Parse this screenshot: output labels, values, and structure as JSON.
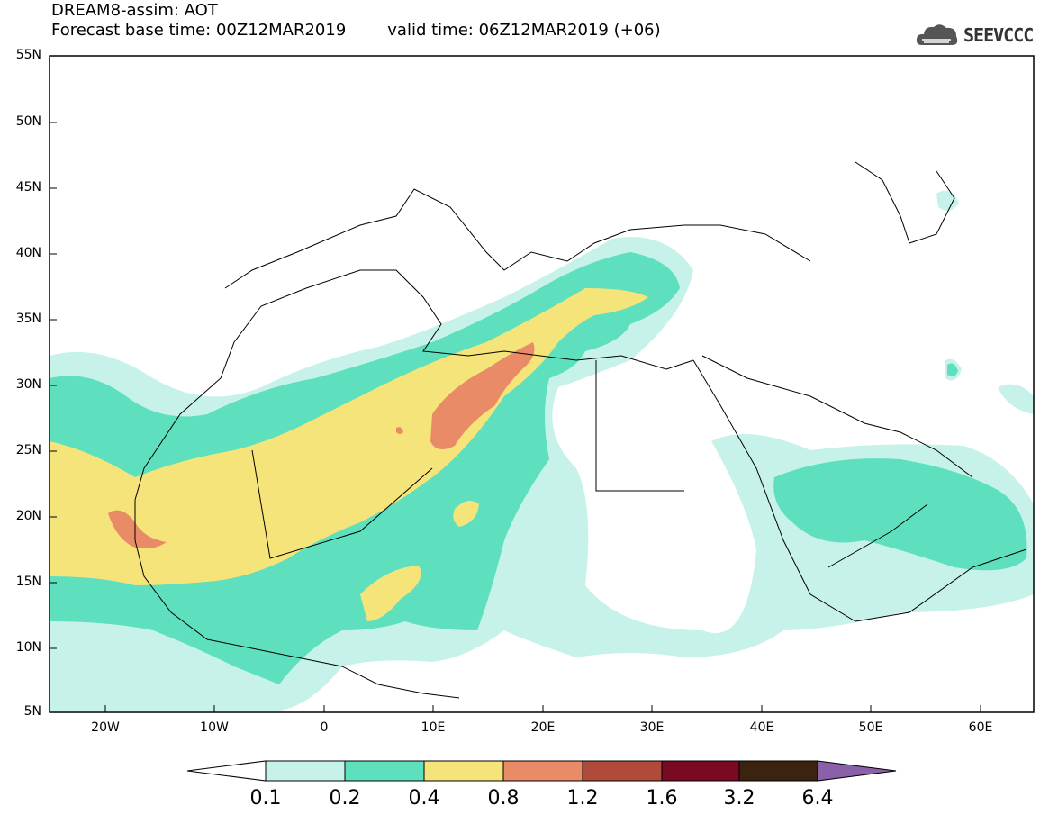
{
  "title": {
    "line1": "DREAM8-assim: AOT",
    "base_time": "Forecast base time: 00Z12MAR2019",
    "valid_time": "valid time: 06Z12MAR2019 (+06)"
  },
  "logo": {
    "text": "SEEVCCC",
    "icon": "cloud-icon"
  },
  "map": {
    "region": "North Africa / Mediterranean / Middle East",
    "lon_range": [
      -25,
      65
    ],
    "lat_range": [
      5,
      55
    ],
    "lat_ticks": [
      "55N",
      "50N",
      "45N",
      "40N",
      "35N",
      "30N",
      "25N",
      "20N",
      "15N",
      "10N",
      "5N"
    ],
    "lon_ticks": [
      "20W",
      "10W",
      "0",
      "10E",
      "20E",
      "30E",
      "40E",
      "50E",
      "60E"
    ]
  },
  "colorbar": {
    "labels": [
      "0.1",
      "0.2",
      "0.4",
      "0.8",
      "1.2",
      "1.6",
      "3.2",
      "6.4"
    ],
    "colors": [
      "#ffffff",
      "#c6f2ea",
      "#5ee0be",
      "#f5e47a",
      "#ea8b68",
      "#b04a3a",
      "#7a0a24",
      "#3a2410",
      "#8a60a8"
    ]
  }
}
